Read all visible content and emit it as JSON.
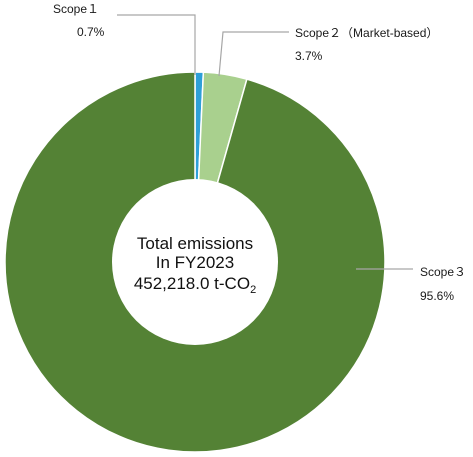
{
  "chart_data": {
    "type": "pie",
    "donut": true,
    "categories": [
      "Scope 1",
      "Scope 2 (Market-based)",
      "Scope 3"
    ],
    "values": [
      0.7,
      3.7,
      95.6
    ],
    "value_labels": [
      "0.7%",
      "3.7%",
      "95.6%"
    ],
    "unit": "%",
    "label_names": [
      "Scope１",
      "Scope２（Market-based）",
      "Scope３"
    ],
    "colors": [
      "#2e9fd8",
      "#a9d08e",
      "#548235"
    ],
    "center_text": {
      "line1": "Total emissions",
      "line2": "In FY2023",
      "line3_main": "452,218.0 t-CO",
      "line3_sub": "2"
    },
    "legend": "none"
  }
}
